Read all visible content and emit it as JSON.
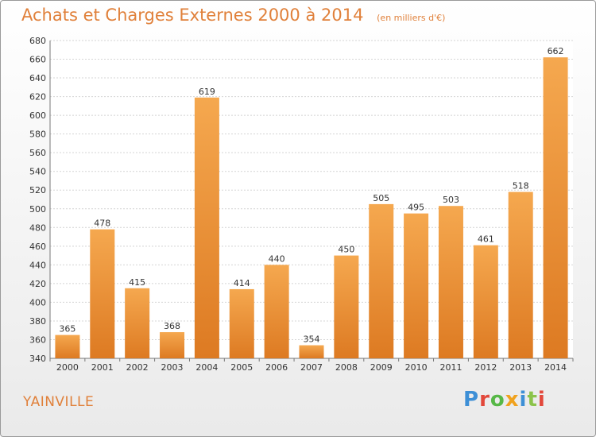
{
  "header": {
    "title": "Achats et Charges Externes 2000 à 2014",
    "subtitle": "(en milliers d'€)"
  },
  "footer": {
    "place": "YAINVILLE",
    "brand": "Proxiti"
  },
  "colors": {
    "bar_light": "#f5a84f",
    "bar_dark": "#dd7a22",
    "title": "#e0803a",
    "brand_letters": [
      "#3d8fd6",
      "#e2483b",
      "#57b847",
      "#f0a21e",
      "#3d8fd6",
      "#8bc34a",
      "#e2483b"
    ]
  },
  "chart_data": {
    "type": "bar",
    "categories": [
      "2000",
      "2001",
      "2002",
      "2003",
      "2004",
      "2005",
      "2006",
      "2007",
      "2008",
      "2009",
      "2010",
      "2011",
      "2012",
      "2013",
      "2014"
    ],
    "values": [
      365,
      478,
      415,
      368,
      619,
      414,
      440,
      354,
      450,
      505,
      495,
      503,
      461,
      518,
      662
    ],
    "title": "Achats et Charges Externes 2000 à 2014",
    "ylim": [
      340,
      680
    ],
    "yticks": [
      340,
      360,
      380,
      400,
      420,
      440,
      460,
      480,
      500,
      520,
      540,
      560,
      580,
      600,
      620,
      640,
      660,
      680
    ],
    "grid": true,
    "data_labels": true
  }
}
